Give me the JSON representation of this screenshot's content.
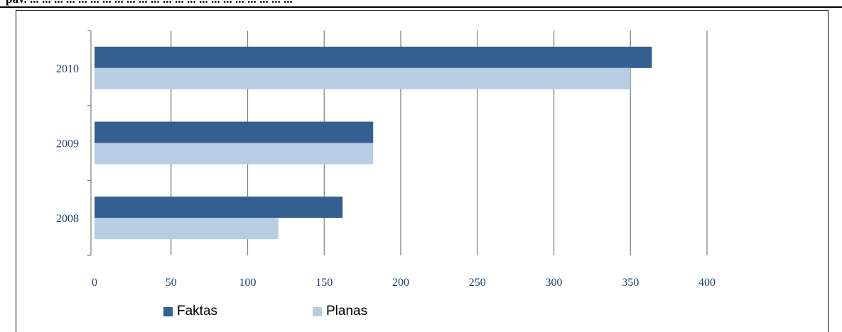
{
  "header": {
    "caption_fragment": "pav. ... ... ... ... ... ... ... ... ... ... ... ... ... ... ... ... ... ... ... ... ... ..."
  },
  "chart_data": {
    "type": "bar",
    "orientation": "horizontal",
    "title": "",
    "xlabel": "",
    "ylabel": "",
    "categories": [
      "2008",
      "2009",
      "2010"
    ],
    "series": [
      {
        "name": "Faktas",
        "values": [
          162,
          182,
          364
        ],
        "color": "#345f91"
      },
      {
        "name": "Planas",
        "values": [
          120,
          182,
          350
        ],
        "color": "#b8cce4"
      }
    ],
    "xlim": [
      0,
      400
    ],
    "xticks": [
      0,
      50,
      100,
      150,
      200,
      250,
      300,
      350,
      400
    ],
    "xtick_labels": [
      "0",
      "50",
      "100",
      "150",
      "200",
      "250",
      "300",
      "350",
      "400"
    ],
    "grid": true,
    "legend": "bottom-left"
  },
  "legend": {
    "items": [
      {
        "label": "Faktas",
        "color": "#345f91"
      },
      {
        "label": "Planas",
        "color": "#b8cce4"
      }
    ]
  }
}
